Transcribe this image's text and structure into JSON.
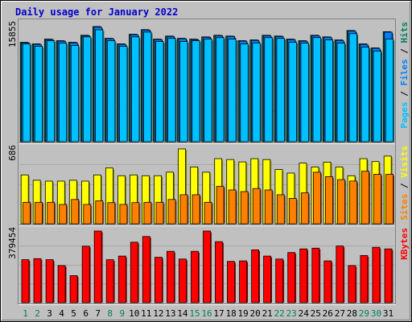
{
  "chart_data": {
    "type": "bar",
    "title": "Daily usage for January 2022",
    "categories": [
      "1",
      "2",
      "3",
      "4",
      "5",
      "6",
      "7",
      "8",
      "9",
      "10",
      "11",
      "12",
      "13",
      "14",
      "15",
      "16",
      "17",
      "18",
      "19",
      "20",
      "21",
      "22",
      "23",
      "24",
      "25",
      "26",
      "27",
      "28",
      "29",
      "30",
      "31"
    ],
    "weekend_days": [
      "1",
      "2",
      "8",
      "9",
      "15",
      "16",
      "22",
      "23",
      "29",
      "30"
    ],
    "panels": [
      {
        "id": "hits",
        "y_max_label": "15855",
        "ymax": 15855,
        "legend": [
          {
            "text": "Pages",
            "color": "#00c0ff"
          },
          {
            "text": " / ",
            "color": "#000000"
          },
          {
            "text": "Files",
            "color": "#0080ff"
          },
          {
            "text": " / ",
            "color": "#000000"
          },
          {
            "text": "Hits",
            "color": "#00805c"
          }
        ],
        "series": [
          {
            "name": "Hits",
            "color": "#00805c",
            "values": [
              13500,
              13280,
              13930,
              13720,
              13500,
              14460,
              15640,
              14040,
              13280,
              14600,
              15220,
              13930,
              14350,
              14040,
              13930,
              14240,
              14460,
              14350,
              13720,
              13820,
              14460,
              14350,
              13930,
              13720,
              14460,
              14240,
              13820,
              15100,
              13280,
              12740,
              14940
            ]
          },
          {
            "name": "Files",
            "color": "#0080ff",
            "values": [
              13440,
              13220,
              13870,
              13660,
              13440,
              14400,
              15560,
              13980,
              13220,
              14540,
              15160,
              13870,
              14290,
              13980,
              13870,
              14180,
              14400,
              14290,
              13660,
              13760,
              14400,
              14290,
              13870,
              13660,
              14400,
              14180,
              13760,
              15040,
              13220,
              12680,
              14880
            ]
          },
          {
            "name": "Pages",
            "color": "#00c0ff",
            "values": [
              13280,
              12960,
              13710,
              13390,
              13060,
              14240,
              15200,
              13710,
              12960,
              14240,
              14880,
              13600,
              14030,
              13600,
              13710,
              13930,
              14140,
              13930,
              13280,
              13390,
              14140,
              14030,
              13500,
              13390,
              14140,
              13820,
              13390,
              14670,
              12850,
              12310,
              13930
            ]
          }
        ]
      },
      {
        "id": "visits",
        "y_max_label": "686",
        "ymax": 686,
        "legend": [
          {
            "text": "Sites",
            "color": "#ff8000"
          },
          {
            "text": " / ",
            "color": "#000000"
          },
          {
            "text": "Visits",
            "color": "#ffff00"
          }
        ],
        "series": [
          {
            "name": "Visits",
            "color": "#ffff00",
            "values": [
              448,
              399,
              391,
              391,
              399,
              391,
              448,
              511,
              440,
              448,
              440,
              440,
              473,
              686,
              521,
              473,
              597,
              589,
              567,
              597,
              589,
              497,
              465,
              556,
              521,
              565,
              520,
              440,
              597,
              570,
              620
            ]
          },
          {
            "name": "Sites",
            "color": "#ff8000",
            "values": [
              197,
              197,
              197,
              177,
              223,
              177,
              210,
              194,
              177,
              194,
              197,
              197,
              223,
              266,
              266,
              197,
              343,
              310,
              295,
              323,
              310,
              266,
              232,
              283,
              473,
              432,
              405,
              392,
              482,
              454,
              454
            ]
          }
        ]
      },
      {
        "id": "kbytes",
        "y_max_label": "379454",
        "ymax": 379454,
        "legend": [
          {
            "text": "KBytes",
            "color": "#ff0000"
          }
        ],
        "series": [
          {
            "name": "KBytes",
            "color": "#ff0000",
            "values": [
              227700,
              233100,
              227700,
              196700,
              143400,
              299500,
              379454,
              227700,
              246900,
              320200,
              350500,
              240500,
              271900,
              230900,
              271900,
              379454,
              323100,
              218600,
              221400,
              279700,
              246900,
              230900,
              265700,
              285000,
              288600,
              221400,
              300300,
              196700,
              250000,
              293300,
              285000
            ]
          }
        ]
      }
    ]
  }
}
